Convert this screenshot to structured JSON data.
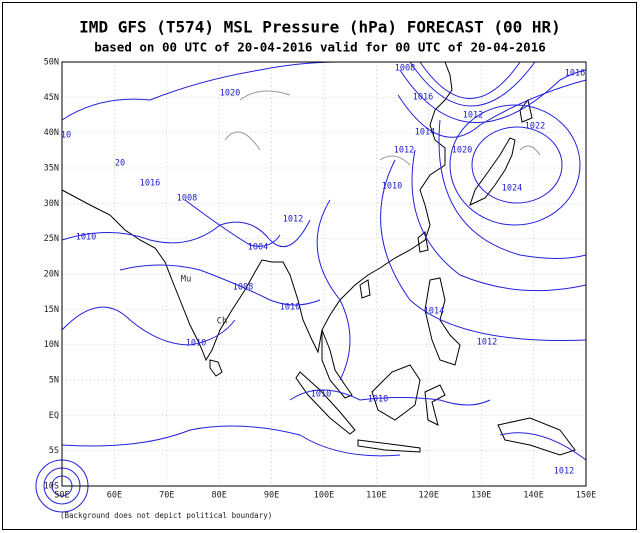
{
  "header": {
    "title": "IMD GFS (T574) MSL Pressure (hPa) FORECAST (00 HR)",
    "subtitle": "based on 00 UTC of 20-04-2016 valid for 00 UTC of 20-04-2016"
  },
  "axes": {
    "lat_labels": [
      "50N",
      "45N",
      "40N",
      "35N",
      "30N",
      "25N",
      "20N",
      "15N",
      "10N",
      "5N",
      "EQ",
      "5S",
      "10S"
    ],
    "lon_labels": [
      "50E",
      "60E",
      "70E",
      "80E",
      "90E",
      "100E",
      "110E",
      "120E",
      "130E",
      "140E",
      "150E"
    ]
  },
  "map": {
    "contour_labels": [
      "1008",
      "1016",
      "1020",
      "1016",
      "1012",
      "1022",
      "1014",
      "1012",
      "1020",
      "10",
      "20",
      "1016",
      "1008",
      "1010",
      "1024",
      "1010",
      "1004",
      "1012",
      "1008",
      "1010",
      "1014",
      "1012",
      "1010",
      "1010",
      "1010",
      "1012"
    ],
    "place_labels": [
      "Mu",
      "Ch"
    ]
  },
  "footer": {
    "note": "(Background does not depict political boundary)"
  }
}
